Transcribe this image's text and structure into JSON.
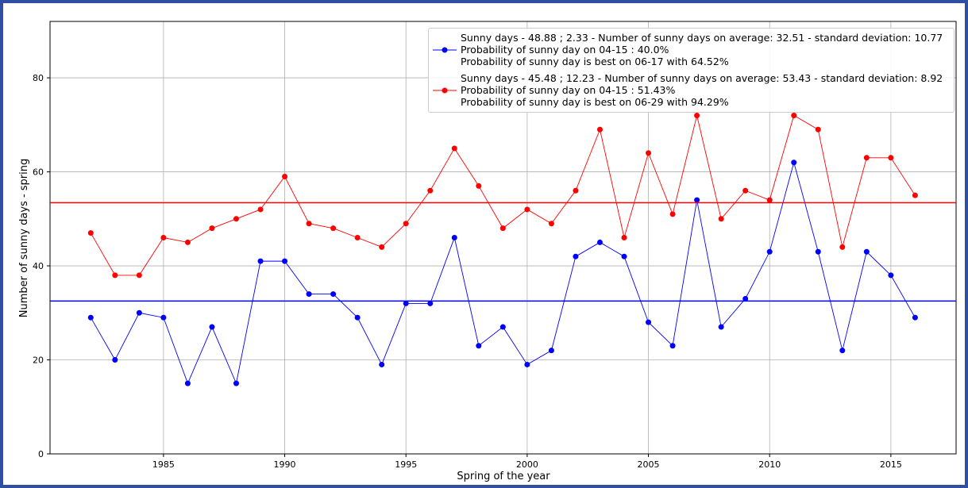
{
  "chart_data": {
    "type": "line",
    "x_label": "Spring of the year",
    "y_label": "Number of sunny days - spring",
    "x": [
      1982,
      1983,
      1984,
      1985,
      1986,
      1987,
      1988,
      1989,
      1990,
      1991,
      1992,
      1993,
      1994,
      1995,
      1996,
      1997,
      1998,
      1999,
      2000,
      2001,
      2002,
      2003,
      2004,
      2005,
      2006,
      2007,
      2008,
      2009,
      2010,
      2011,
      2012,
      2013,
      2014,
      2015,
      2016
    ],
    "series": [
      {
        "name": "Sunny days - 48.88 ; 2.33 - Number of sunny days on average: 32.51  -  standard deviation: 10.77\nProbability of sunny day on 04-15 : 40.0%\nProbability of sunny day is best on 06-17 with 64.52%",
        "color": "#0000ff",
        "mean": 32.51,
        "values": [
          29,
          20,
          30,
          29,
          15,
          27,
          15,
          41,
          41,
          34,
          34,
          29,
          19,
          32,
          32,
          46,
          23,
          27,
          19,
          22,
          42,
          45,
          42,
          28,
          23,
          54,
          27,
          33,
          43,
          62,
          43,
          22,
          43,
          38,
          29
        ]
      },
      {
        "name": "Sunny days - 45.48 ; 12.23 - Number of sunny days on average: 53.43  -  standard deviation: 8.92\nProbability of sunny day on 04-15 : 51.43%\nProbability of sunny day is best on 06-29 with 94.29%",
        "color": "#ff0000",
        "mean": 53.43,
        "values": [
          47,
          38,
          38,
          46,
          45,
          48,
          50,
          52,
          59,
          49,
          48,
          46,
          44,
          49,
          56,
          65,
          57,
          48,
          52,
          49,
          56,
          69,
          46,
          64,
          51,
          72,
          50,
          56,
          54,
          72,
          69,
          44,
          63,
          63,
          55
        ]
      }
    ],
    "xlim": [
      1980.32,
      2017.69
    ],
    "xticks": [
      1985,
      1990,
      1995,
      2000,
      2005,
      2010,
      2015
    ],
    "ylim": [
      0,
      92
    ],
    "yticks": [
      0,
      20,
      40,
      60,
      80
    ],
    "grid": true,
    "legend": "upper right"
  }
}
